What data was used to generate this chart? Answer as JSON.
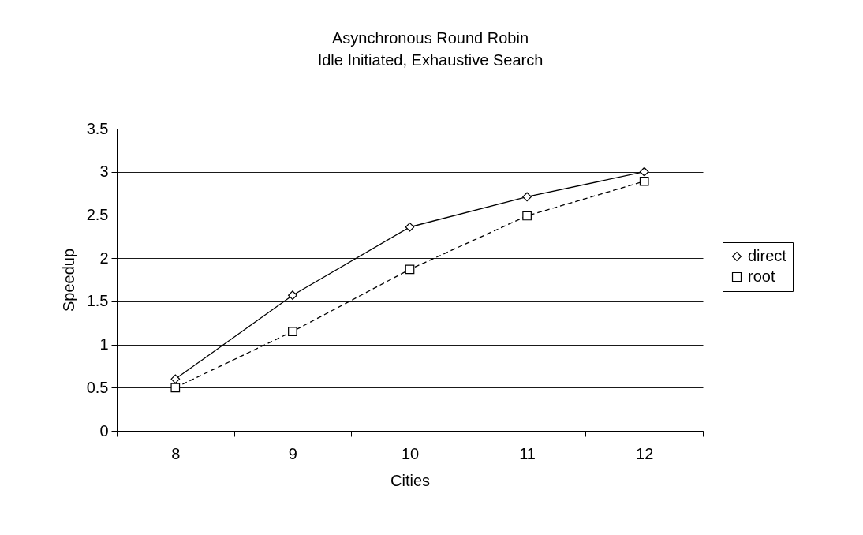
{
  "chart_data": {
    "type": "line",
    "title": "Asynchronous Round Robin",
    "subtitle": "Idle Initiated, Exhaustive Search",
    "xlabel": "Cities",
    "ylabel": "Speedup",
    "categories": [
      "8",
      "9",
      "10",
      "11",
      "12"
    ],
    "series": [
      {
        "name": "direct",
        "color": "#000000",
        "marker": "diamond",
        "line_style": "solid",
        "values": [
          0.6,
          1.57,
          2.36,
          2.71,
          3.0
        ]
      },
      {
        "name": "root",
        "color": "#000000",
        "marker": "square",
        "line_style": "dashed",
        "values": [
          0.5,
          1.15,
          1.87,
          2.49,
          2.89
        ]
      }
    ],
    "ylim": [
      0,
      3.5
    ],
    "yticks": [
      0,
      0.5,
      1,
      1.5,
      2,
      2.5,
      3,
      3.5
    ],
    "grid": "y",
    "legend": "right"
  }
}
